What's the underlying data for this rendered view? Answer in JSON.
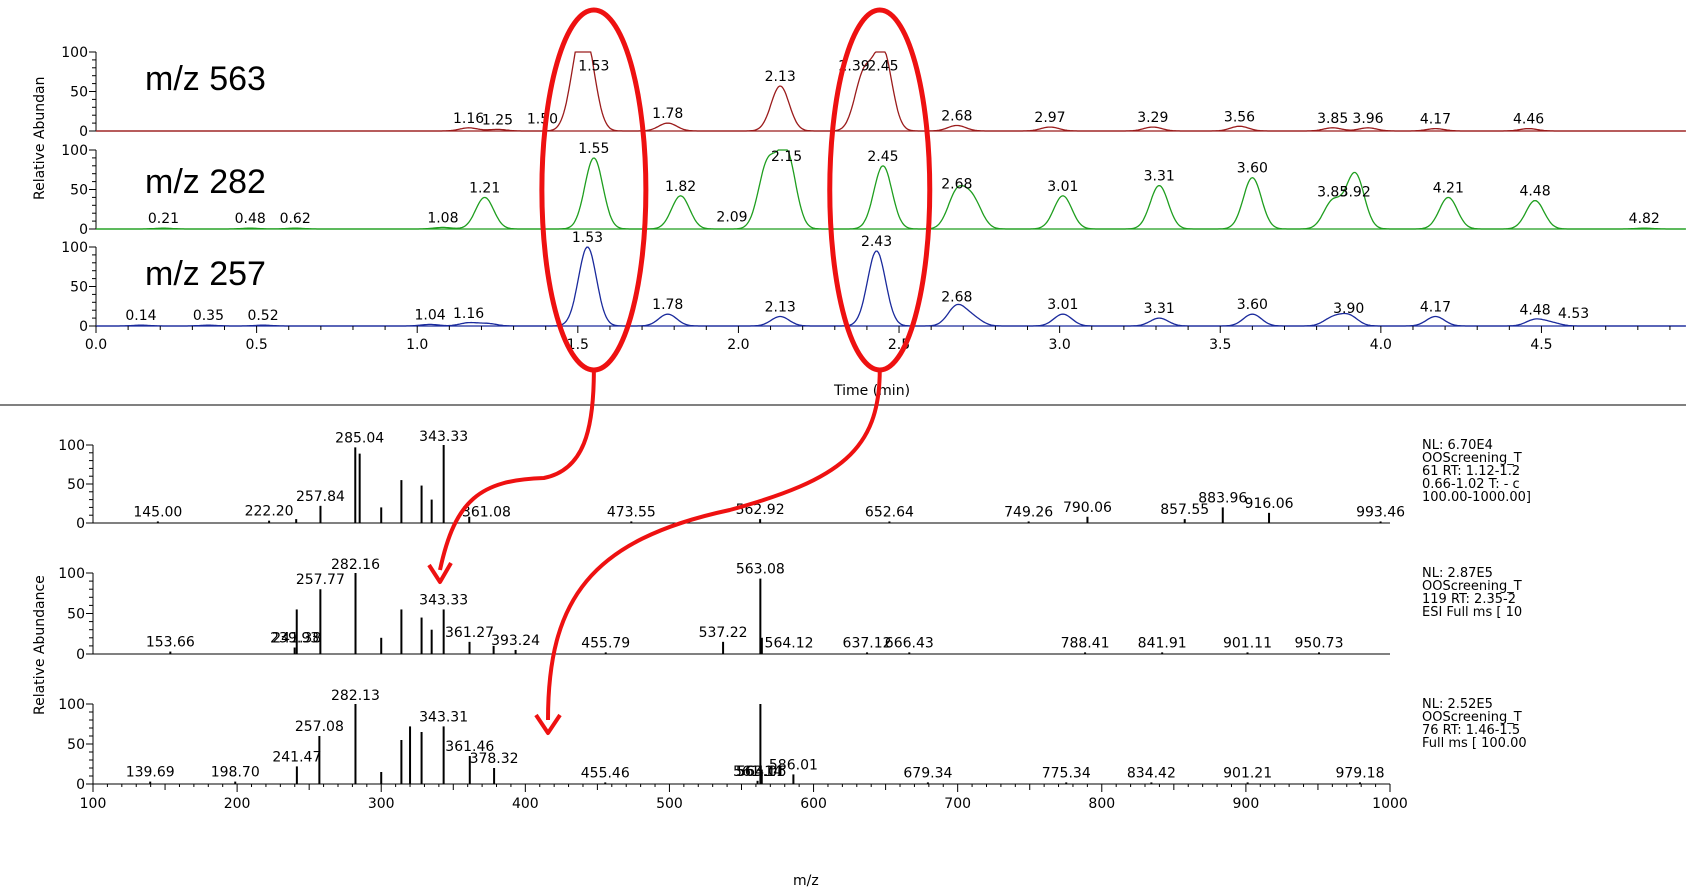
{
  "colors": {
    "p563": "#9b1c1c",
    "p282": "#1f9e1f",
    "p257": "#1a2a9c",
    "ms": "#000000",
    "annotation": "#ee1111",
    "tick": "#2aa02a"
  },
  "chromatogram": {
    "ylabel": "Relative Abundan",
    "xlabel": "Time (min)",
    "x_ticks": [
      "0.0",
      "0.5",
      "1.0",
      "1.5",
      "2.0",
      "2.5",
      "3.0",
      "3.5",
      "4.0",
      "4.5"
    ],
    "y_ticks": [
      "0",
      "50",
      "100"
    ]
  },
  "mass_spectra": {
    "ylabel": "Relative Abundance",
    "xlabel": "m/z",
    "x_ticks": [
      "100",
      "200",
      "300",
      "400",
      "500",
      "600",
      "700",
      "800",
      "900",
      "1000"
    ],
    "y_ticks": [
      "0",
      "50",
      "100"
    ]
  },
  "chart_data": [
    {
      "type": "line",
      "panel": "chromatogram-563",
      "label": "m/z 563",
      "xlim": [
        0,
        4.95
      ],
      "ylim": [
        0,
        100
      ],
      "peaks": [
        [
          1.16,
          4
        ],
        [
          1.25,
          2
        ],
        [
          1.5,
          70
        ],
        [
          1.53,
          82
        ],
        [
          1.78,
          10
        ],
        [
          2.13,
          57
        ],
        [
          2.39,
          70
        ],
        [
          2.45,
          100
        ],
        [
          2.68,
          7
        ],
        [
          2.97,
          5
        ],
        [
          3.29,
          5
        ],
        [
          3.56,
          6
        ],
        [
          3.85,
          4
        ],
        [
          3.96,
          4
        ],
        [
          4.17,
          3
        ],
        [
          4.46,
          3
        ]
      ],
      "labels": [
        [
          "1.16",
          1.16
        ],
        [
          "1.25",
          1.25
        ],
        [
          "1.50",
          1.39
        ],
        [
          "1.53",
          1.55
        ],
        [
          "1.78",
          1.78
        ],
        [
          "2.13",
          2.13
        ],
        [
          "2.39",
          2.36
        ],
        [
          "2.45",
          2.45
        ],
        [
          "2.68",
          2.68
        ],
        [
          "2.97",
          2.97
        ],
        [
          "3.29",
          3.29
        ],
        [
          "3.56",
          3.56
        ],
        [
          "3.85",
          3.85
        ],
        [
          "3.96",
          3.96
        ],
        [
          "4.17",
          4.17
        ],
        [
          "4.46",
          4.46
        ]
      ]
    },
    {
      "type": "line",
      "panel": "chromatogram-282",
      "label": "m/z 282",
      "xlim": [
        0,
        4.95
      ],
      "ylim": [
        0,
        100
      ],
      "peaks": [
        [
          0.21,
          1
        ],
        [
          0.48,
          1
        ],
        [
          0.62,
          1
        ],
        [
          1.08,
          2
        ],
        [
          1.21,
          40
        ],
        [
          1.55,
          90
        ],
        [
          1.82,
          42
        ],
        [
          2.09,
          80
        ],
        [
          2.15,
          95
        ],
        [
          2.45,
          80
        ],
        [
          2.68,
          45
        ],
        [
          2.73,
          35
        ],
        [
          3.01,
          42
        ],
        [
          3.31,
          55
        ],
        [
          3.6,
          65
        ],
        [
          3.85,
          35
        ],
        [
          3.92,
          70
        ],
        [
          4.21,
          40
        ],
        [
          4.48,
          36
        ],
        [
          4.82,
          1
        ]
      ],
      "labels": [
        [
          "0.21",
          0.21
        ],
        [
          "0.48",
          0.48
        ],
        [
          "0.62",
          0.62
        ],
        [
          "1.08",
          1.08
        ],
        [
          "1.21",
          1.21
        ],
        [
          "1.55",
          1.55
        ],
        [
          "1.82",
          1.82
        ],
        [
          "2.09",
          1.98
        ],
        [
          "2.15",
          2.15
        ],
        [
          "2.45",
          2.45
        ],
        [
          "2.68",
          2.68
        ],
        [
          "3.01",
          3.01
        ],
        [
          "3.31",
          3.31
        ],
        [
          "3.60",
          3.6
        ],
        [
          "3.85",
          3.85
        ],
        [
          "3.92",
          3.92
        ],
        [
          "4.21",
          4.21
        ],
        [
          "4.48",
          4.48
        ],
        [
          "4.82",
          4.82
        ]
      ]
    },
    {
      "type": "line",
      "panel": "chromatogram-257",
      "label": "m/z 257",
      "xlim": [
        0,
        4.95
      ],
      "ylim": [
        0,
        100
      ],
      "peaks": [
        [
          0.14,
          1
        ],
        [
          0.35,
          1
        ],
        [
          0.52,
          1
        ],
        [
          1.04,
          2
        ],
        [
          1.16,
          4
        ],
        [
          1.22,
          3
        ],
        [
          1.53,
          100
        ],
        [
          1.78,
          15
        ],
        [
          2.13,
          12
        ],
        [
          2.43,
          95
        ],
        [
          2.68,
          25
        ],
        [
          2.73,
          10
        ],
        [
          3.01,
          15
        ],
        [
          3.31,
          10
        ],
        [
          3.6,
          15
        ],
        [
          3.85,
          10
        ],
        [
          3.9,
          13
        ],
        [
          4.17,
          12
        ],
        [
          4.48,
          8
        ],
        [
          4.53,
          4
        ]
      ],
      "labels": [
        [
          "0.14",
          0.14
        ],
        [
          "0.35",
          0.35
        ],
        [
          "0.52",
          0.52
        ],
        [
          "1.04",
          1.04
        ],
        [
          "1.16",
          1.16
        ],
        [
          "1.53",
          1.53
        ],
        [
          "1.78",
          1.78
        ],
        [
          "2.13",
          2.13
        ],
        [
          "2.43",
          2.43
        ],
        [
          "2.68",
          2.68
        ],
        [
          "3.01",
          3.01
        ],
        [
          "3.31",
          3.31
        ],
        [
          "3.60",
          3.6
        ],
        [
          "3.90",
          3.9
        ],
        [
          "4.17",
          4.17
        ],
        [
          "4.48",
          4.48
        ],
        [
          "4.53",
          4.6
        ]
      ]
    },
    {
      "type": "bar",
      "panel": "ms-1",
      "xlim": [
        100,
        1000
      ],
      "ylim": [
        0,
        100
      ],
      "info": [
        "NL: 6.70E4",
        "OOScreening_T",
        "61  RT: 1.12-1.2",
        "0.66-1.02  T: - c",
        "100.00-1000.00]"
      ],
      "peaks": [
        [
          145,
          2
        ],
        [
          222.2,
          3
        ],
        [
          241,
          5
        ],
        [
          257.84,
          22
        ],
        [
          282,
          97
        ],
        [
          285.04,
          89
        ],
        [
          300,
          20
        ],
        [
          314,
          55
        ],
        [
          328,
          48
        ],
        [
          335,
          30
        ],
        [
          343.33,
          100
        ],
        [
          361.08,
          8
        ],
        [
          473.55,
          2
        ],
        [
          562.92,
          5
        ],
        [
          652.64,
          2
        ],
        [
          749.26,
          2
        ],
        [
          790.06,
          8
        ],
        [
          857.55,
          5
        ],
        [
          883.96,
          20
        ],
        [
          916.06,
          13
        ],
        [
          993.46,
          2
        ]
      ],
      "labels": [
        [
          "145.00",
          145
        ],
        [
          "222.20",
          222.2
        ],
        [
          "257.84",
          257.84
        ],
        [
          "285.04",
          285.04
        ],
        [
          "343.33",
          343.33
        ],
        [
          "361.08",
          373
        ],
        [
          "473.55",
          473.55
        ],
        [
          "562.92",
          562.92
        ],
        [
          "652.64",
          652.64
        ],
        [
          "749.26",
          749.26
        ],
        [
          "790.06",
          790.06
        ],
        [
          "857.55",
          857.55
        ],
        [
          "883.96",
          883.96
        ],
        [
          "916.06",
          916.06
        ],
        [
          "993.46",
          993.46
        ]
      ]
    },
    {
      "type": "bar",
      "panel": "ms-2",
      "xlim": [
        100,
        1000
      ],
      "ylim": [
        0,
        100
      ],
      "info": [
        "NL: 2.87E5",
        "OOScreening_T",
        "119  RT: 2.35-2",
        "ESI Full ms [ 10"
      ],
      "peaks": [
        [
          153.66,
          3
        ],
        [
          239.93,
          8
        ],
        [
          241.38,
          55
        ],
        [
          257.77,
          80
        ],
        [
          282.16,
          100
        ],
        [
          300,
          20
        ],
        [
          314,
          55
        ],
        [
          328,
          45
        ],
        [
          335,
          30
        ],
        [
          343.33,
          55
        ],
        [
          361.27,
          15
        ],
        [
          378,
          10
        ],
        [
          393.24,
          5
        ],
        [
          455.79,
          2
        ],
        [
          537.22,
          15
        ],
        [
          563.08,
          93
        ],
        [
          564.12,
          20
        ],
        [
          637.12,
          2
        ],
        [
          666.43,
          2
        ],
        [
          788.41,
          2
        ],
        [
          841.91,
          2
        ],
        [
          901.11,
          2
        ],
        [
          950.73,
          2
        ]
      ],
      "labels": [
        [
          "153.66",
          153.66
        ],
        [
          "239.93",
          239.93
        ],
        [
          "241.38",
          241.38
        ],
        [
          "257.77",
          257.77
        ],
        [
          "282.16",
          282.16
        ],
        [
          "343.33",
          343.33
        ],
        [
          "361.27",
          361.27
        ],
        [
          "393.24",
          393.24
        ],
        [
          "455.79",
          455.79
        ],
        [
          "537.22",
          537.22
        ],
        [
          "563.08",
          563.08
        ],
        [
          "564.12",
          583
        ],
        [
          "637.12",
          637.12
        ],
        [
          "666.43",
          666.43
        ],
        [
          "788.41",
          788.41
        ],
        [
          "841.91",
          841.91
        ],
        [
          "901.11",
          901.11
        ],
        [
          "950.73",
          950.73
        ]
      ]
    },
    {
      "type": "bar",
      "panel": "ms-3",
      "xlim": [
        100,
        1000
      ],
      "ylim": [
        0,
        100
      ],
      "info": [
        "NL: 2.52E5",
        "OOScreening_T",
        "76  RT: 1.46-1.5",
        "Full ms [ 100.00"
      ],
      "peaks": [
        [
          139.69,
          3
        ],
        [
          198.7,
          3
        ],
        [
          241.47,
          22
        ],
        [
          257.08,
          60
        ],
        [
          282.13,
          100
        ],
        [
          300,
          15
        ],
        [
          314,
          55
        ],
        [
          320,
          72
        ],
        [
          328,
          65
        ],
        [
          343.31,
          72
        ],
        [
          361.46,
          35
        ],
        [
          378.32,
          20
        ],
        [
          455.46,
          2
        ],
        [
          561.14,
          4
        ],
        [
          563.11,
          100
        ],
        [
          564.06,
          18
        ],
        [
          586.01,
          12
        ],
        [
          679.34,
          2
        ],
        [
          775.34,
          2
        ],
        [
          834.42,
          2
        ],
        [
          901.21,
          2
        ],
        [
          979.18,
          2
        ]
      ],
      "labels": [
        [
          "139.69",
          139.69
        ],
        [
          "198.70",
          198.7
        ],
        [
          "241.47",
          241.47
        ],
        [
          "257.08",
          257.08
        ],
        [
          "282.13",
          282.13
        ],
        [
          "343.31",
          343.31
        ],
        [
          "361.46",
          361.46
        ],
        [
          "378.32",
          378.32
        ],
        [
          "455.46",
          455.46
        ],
        [
          "561.14",
          561.14
        ],
        [
          "563.11",
          563.11
        ],
        [
          "564.06",
          564.06
        ],
        [
          "586.01",
          586.01
        ],
        [
          "679.34",
          679.34
        ],
        [
          "775.34",
          775.34
        ],
        [
          "834.42",
          834.42
        ],
        [
          "901.21",
          901.21
        ],
        [
          "979.18",
          979.18
        ]
      ]
    }
  ]
}
